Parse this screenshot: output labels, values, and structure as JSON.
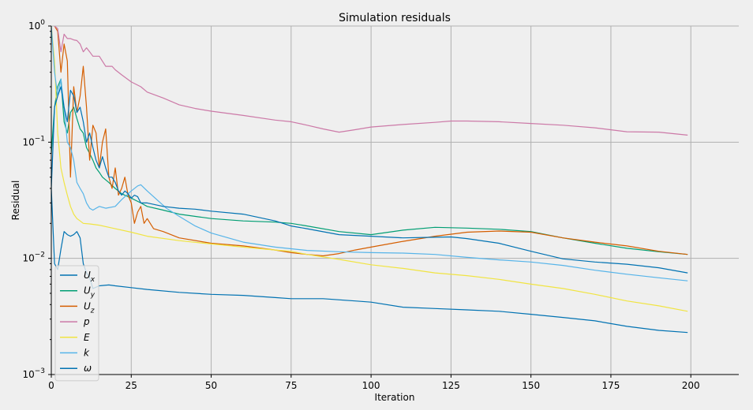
{
  "chart_data": {
    "type": "line",
    "title": "Simulation residuals",
    "xlabel": "Iteration",
    "ylabel": "Residual",
    "xlim": [
      0,
      215
    ],
    "ylim": [
      0.001,
      1
    ],
    "yscale": "log",
    "grid": true,
    "legend_position": "lower-left",
    "x_ticks": [
      0,
      25,
      50,
      75,
      100,
      125,
      150,
      175,
      200
    ],
    "y_ticks": [
      0.001,
      0.01,
      0.1,
      1
    ],
    "series": [
      {
        "name": "U",
        "subscript": "x",
        "color": "#0072b2",
        "points": [
          [
            0,
            0.04
          ],
          [
            1,
            0.009
          ],
          [
            2,
            0.008
          ],
          [
            3,
            0.012
          ],
          [
            4,
            0.017
          ],
          [
            5,
            0.016
          ],
          [
            6,
            0.0155
          ],
          [
            7,
            0.016
          ],
          [
            8,
            0.017
          ],
          [
            9,
            0.015
          ],
          [
            10,
            0.009
          ],
          [
            11,
            0.0075
          ],
          [
            12,
            0.0068
          ],
          [
            13,
            0.0055
          ],
          [
            15,
            0.0058
          ],
          [
            18,
            0.0059
          ],
          [
            20,
            0.0058
          ],
          [
            25,
            0.0056
          ],
          [
            30,
            0.0054
          ],
          [
            40,
            0.0051
          ],
          [
            50,
            0.0049
          ],
          [
            60,
            0.0048
          ],
          [
            70,
            0.0046
          ],
          [
            75,
            0.0045
          ],
          [
            85,
            0.0045
          ],
          [
            95,
            0.0043
          ],
          [
            100,
            0.0042
          ],
          [
            110,
            0.0038
          ],
          [
            120,
            0.0037
          ],
          [
            130,
            0.0036
          ],
          [
            140,
            0.0035
          ],
          [
            150,
            0.0033
          ],
          [
            160,
            0.0031
          ],
          [
            170,
            0.0029
          ],
          [
            180,
            0.0026
          ],
          [
            190,
            0.0024
          ],
          [
            199,
            0.0023
          ]
        ]
      },
      {
        "name": "U",
        "subscript": "y",
        "color": "#009e73",
        "points": [
          [
            0,
            0.08
          ],
          [
            1,
            0.2
          ],
          [
            2,
            0.3
          ],
          [
            3,
            0.35
          ],
          [
            4,
            0.15
          ],
          [
            5,
            0.12
          ],
          [
            6,
            0.18
          ],
          [
            7,
            0.2
          ],
          [
            8,
            0.16
          ],
          [
            9,
            0.13
          ],
          [
            10,
            0.12
          ],
          [
            11,
            0.09
          ],
          [
            12,
            0.08
          ],
          [
            13,
            0.07
          ],
          [
            14,
            0.06
          ],
          [
            15,
            0.055
          ],
          [
            16,
            0.05
          ],
          [
            18,
            0.045
          ],
          [
            20,
            0.04
          ],
          [
            22,
            0.036
          ],
          [
            25,
            0.033
          ],
          [
            28,
            0.03
          ],
          [
            30,
            0.028
          ],
          [
            35,
            0.026
          ],
          [
            40,
            0.024
          ],
          [
            50,
            0.022
          ],
          [
            60,
            0.021
          ],
          [
            70,
            0.0205
          ],
          [
            75,
            0.02
          ],
          [
            80,
            0.019
          ],
          [
            90,
            0.017
          ],
          [
            100,
            0.016
          ],
          [
            110,
            0.0175
          ],
          [
            120,
            0.0185
          ],
          [
            130,
            0.0182
          ],
          [
            140,
            0.0178
          ],
          [
            150,
            0.017
          ],
          [
            160,
            0.015
          ],
          [
            170,
            0.0135
          ],
          [
            180,
            0.0122
          ],
          [
            190,
            0.0114
          ],
          [
            199,
            0.0108
          ]
        ]
      },
      {
        "name": "U",
        "subscript": "z",
        "color": "#d55e00",
        "points": [
          [
            1,
            1
          ],
          [
            2,
            0.9
          ],
          [
            3,
            0.4
          ],
          [
            4,
            0.7
          ],
          [
            5,
            0.5
          ],
          [
            6,
            0.05
          ],
          [
            7,
            0.3
          ],
          [
            8,
            0.18
          ],
          [
            9,
            0.25
          ],
          [
            10,
            0.45
          ],
          [
            11,
            0.2
          ],
          [
            12,
            0.07
          ],
          [
            13,
            0.14
          ],
          [
            14,
            0.12
          ],
          [
            15,
            0.06
          ],
          [
            16,
            0.1
          ],
          [
            17,
            0.13
          ],
          [
            18,
            0.05
          ],
          [
            19,
            0.04
          ],
          [
            20,
            0.06
          ],
          [
            21,
            0.035
          ],
          [
            22,
            0.04
          ],
          [
            23,
            0.05
          ],
          [
            24,
            0.035
          ],
          [
            25,
            0.03
          ],
          [
            26,
            0.02
          ],
          [
            27,
            0.025
          ],
          [
            28,
            0.028
          ],
          [
            29,
            0.02
          ],
          [
            30,
            0.022
          ],
          [
            32,
            0.018
          ],
          [
            35,
            0.017
          ],
          [
            40,
            0.015
          ],
          [
            50,
            0.0135
          ],
          [
            60,
            0.0128
          ],
          [
            70,
            0.0118
          ],
          [
            75,
            0.0112
          ],
          [
            80,
            0.0108
          ],
          [
            85,
            0.0105
          ],
          [
            90,
            0.011
          ],
          [
            95,
            0.0118
          ],
          [
            100,
            0.0125
          ],
          [
            110,
            0.014
          ],
          [
            120,
            0.0155
          ],
          [
            130,
            0.0168
          ],
          [
            140,
            0.0172
          ],
          [
            150,
            0.0168
          ],
          [
            160,
            0.015
          ],
          [
            170,
            0.0138
          ],
          [
            180,
            0.0128
          ],
          [
            190,
            0.0115
          ],
          [
            199,
            0.0108
          ]
        ]
      },
      {
        "name": "p",
        "subscript": "",
        "color": "#cc79a7",
        "points": [
          [
            1,
            1
          ],
          [
            2,
            0.95
          ],
          [
            3,
            0.6
          ],
          [
            4,
            0.85
          ],
          [
            5,
            0.78
          ],
          [
            6,
            0.78
          ],
          [
            7,
            0.76
          ],
          [
            8,
            0.75
          ],
          [
            9,
            0.7
          ],
          [
            10,
            0.6
          ],
          [
            11,
            0.65
          ],
          [
            12,
            0.6
          ],
          [
            13,
            0.55
          ],
          [
            15,
            0.55
          ],
          [
            17,
            0.45
          ],
          [
            19,
            0.45
          ],
          [
            20,
            0.42
          ],
          [
            22,
            0.38
          ],
          [
            25,
            0.33
          ],
          [
            28,
            0.3
          ],
          [
            30,
            0.27
          ],
          [
            35,
            0.24
          ],
          [
            40,
            0.21
          ],
          [
            45,
            0.195
          ],
          [
            50,
            0.185
          ],
          [
            60,
            0.17
          ],
          [
            70,
            0.155
          ],
          [
            75,
            0.15
          ],
          [
            80,
            0.14
          ],
          [
            85,
            0.13
          ],
          [
            90,
            0.122
          ],
          [
            95,
            0.128
          ],
          [
            100,
            0.135
          ],
          [
            110,
            0.142
          ],
          [
            120,
            0.148
          ],
          [
            125,
            0.152
          ],
          [
            130,
            0.152
          ],
          [
            140,
            0.15
          ],
          [
            150,
            0.145
          ],
          [
            160,
            0.14
          ],
          [
            170,
            0.133
          ],
          [
            180,
            0.123
          ],
          [
            190,
            0.122
          ],
          [
            199,
            0.115
          ]
        ]
      },
      {
        "name": "E",
        "subscript": "",
        "color": "#f0e442",
        "points": [
          [
            0,
            1
          ],
          [
            1,
            0.5
          ],
          [
            2,
            0.12
          ],
          [
            3,
            0.06
          ],
          [
            4,
            0.045
          ],
          [
            5,
            0.035
          ],
          [
            6,
            0.028
          ],
          [
            7,
            0.024
          ],
          [
            8,
            0.022
          ],
          [
            9,
            0.021
          ],
          [
            10,
            0.02
          ],
          [
            12,
            0.0198
          ],
          [
            15,
            0.0193
          ],
          [
            20,
            0.018
          ],
          [
            25,
            0.0168
          ],
          [
            30,
            0.0155
          ],
          [
            40,
            0.0142
          ],
          [
            50,
            0.0133
          ],
          [
            60,
            0.0125
          ],
          [
            70,
            0.0118
          ],
          [
            75,
            0.0115
          ],
          [
            80,
            0.0108
          ],
          [
            90,
            0.0098
          ],
          [
            100,
            0.0088
          ],
          [
            110,
            0.0082
          ],
          [
            120,
            0.0075
          ],
          [
            130,
            0.0071
          ],
          [
            140,
            0.0066
          ],
          [
            150,
            0.006
          ],
          [
            160,
            0.0055
          ],
          [
            170,
            0.0049
          ],
          [
            180,
            0.0043
          ],
          [
            190,
            0.0039
          ],
          [
            199,
            0.0035
          ]
        ]
      },
      {
        "name": "k",
        "subscript": "",
        "color": "#56b4e9",
        "points": [
          [
            0,
            1
          ],
          [
            1,
            0.4
          ],
          [
            2,
            0.25
          ],
          [
            3,
            0.35
          ],
          [
            4,
            0.2
          ],
          [
            5,
            0.1
          ],
          [
            6,
            0.09
          ],
          [
            7,
            0.07
          ],
          [
            8,
            0.045
          ],
          [
            9,
            0.04
          ],
          [
            10,
            0.036
          ],
          [
            11,
            0.03
          ],
          [
            12,
            0.027
          ],
          [
            13,
            0.026
          ],
          [
            14,
            0.027
          ],
          [
            15,
            0.028
          ],
          [
            17,
            0.027
          ],
          [
            20,
            0.028
          ],
          [
            22,
            0.032
          ],
          [
            25,
            0.038
          ],
          [
            27,
            0.042
          ],
          [
            28,
            0.043
          ],
          [
            30,
            0.038
          ],
          [
            33,
            0.032
          ],
          [
            36,
            0.027
          ],
          [
            40,
            0.023
          ],
          [
            45,
            0.019
          ],
          [
            50,
            0.0165
          ],
          [
            60,
            0.0138
          ],
          [
            70,
            0.0125
          ],
          [
            80,
            0.0117
          ],
          [
            90,
            0.0114
          ],
          [
            100,
            0.0112
          ],
          [
            110,
            0.0111
          ],
          [
            120,
            0.0108
          ],
          [
            130,
            0.0102
          ],
          [
            140,
            0.0097
          ],
          [
            150,
            0.0093
          ],
          [
            160,
            0.0087
          ],
          [
            170,
            0.0079
          ],
          [
            180,
            0.0073
          ],
          [
            190,
            0.0068
          ],
          [
            199,
            0.0064
          ]
        ]
      },
      {
        "name": "ω",
        "subscript": "",
        "color": "#0072b2",
        "points": [
          [
            0,
            0.04
          ],
          [
            1,
            0.2
          ],
          [
            2,
            0.25
          ],
          [
            3,
            0.3
          ],
          [
            4,
            0.2
          ],
          [
            5,
            0.15
          ],
          [
            6,
            0.28
          ],
          [
            7,
            0.25
          ],
          [
            8,
            0.18
          ],
          [
            9,
            0.2
          ],
          [
            10,
            0.15
          ],
          [
            11,
            0.1
          ],
          [
            12,
            0.12
          ],
          [
            13,
            0.09
          ],
          [
            14,
            0.07
          ],
          [
            15,
            0.06
          ],
          [
            16,
            0.075
          ],
          [
            17,
            0.06
          ],
          [
            18,
            0.05
          ],
          [
            19,
            0.05
          ],
          [
            20,
            0.045
          ],
          [
            21,
            0.038
          ],
          [
            22,
            0.035
          ],
          [
            23,
            0.038
          ],
          [
            24,
            0.036
          ],
          [
            25,
            0.033
          ],
          [
            26,
            0.035
          ],
          [
            27,
            0.034
          ],
          [
            28,
            0.03
          ],
          [
            30,
            0.03
          ],
          [
            35,
            0.028
          ],
          [
            40,
            0.027
          ],
          [
            45,
            0.0265
          ],
          [
            50,
            0.0255
          ],
          [
            60,
            0.024
          ],
          [
            70,
            0.021
          ],
          [
            75,
            0.019
          ],
          [
            80,
            0.018
          ],
          [
            90,
            0.016
          ],
          [
            100,
            0.0155
          ],
          [
            110,
            0.015
          ],
          [
            120,
            0.0152
          ],
          [
            125,
            0.0153
          ],
          [
            130,
            0.0148
          ],
          [
            140,
            0.0135
          ],
          [
            150,
            0.0115
          ],
          [
            160,
            0.0099
          ],
          [
            170,
            0.0093
          ],
          [
            180,
            0.0089
          ],
          [
            190,
            0.0083
          ],
          [
            199,
            0.0075
          ]
        ]
      }
    ]
  }
}
